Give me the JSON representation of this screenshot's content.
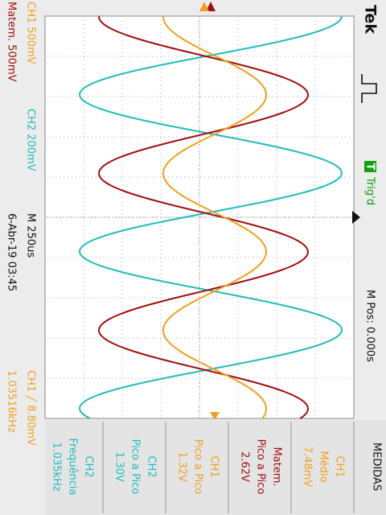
{
  "header": {
    "brand": "Tek",
    "trigger_badge": "T",
    "trigger_status": "Trig'd",
    "position": "M Pos: 0.000s"
  },
  "footer": {
    "ch1_scale": "CH1 500mV",
    "ch2_scale": "CH2 200mV",
    "timebase": "M 250us",
    "trigger_level": "CH1 ╱ 8.80mV",
    "math_scale": "Matem. 500mV",
    "datetime": "6-Abr-19 03:45",
    "trigger_frequency": "1.03516kHz"
  },
  "measurements": {
    "title": "MEDIDAS",
    "items": [
      {
        "source": "CH1",
        "name": "Médio",
        "value": "7.48mV"
      },
      {
        "source": "Matem.",
        "name": "Pico a Pico",
        "value": "2.62V"
      },
      {
        "source": "CH1",
        "name": "Pico a Pico",
        "value": "1.32V"
      },
      {
        "source": "CH2",
        "name": "Pico a Pico",
        "value": "1.30V"
      },
      {
        "source": "CH2",
        "name": "Frequência",
        "value": "1.035kHz"
      }
    ]
  }
}
